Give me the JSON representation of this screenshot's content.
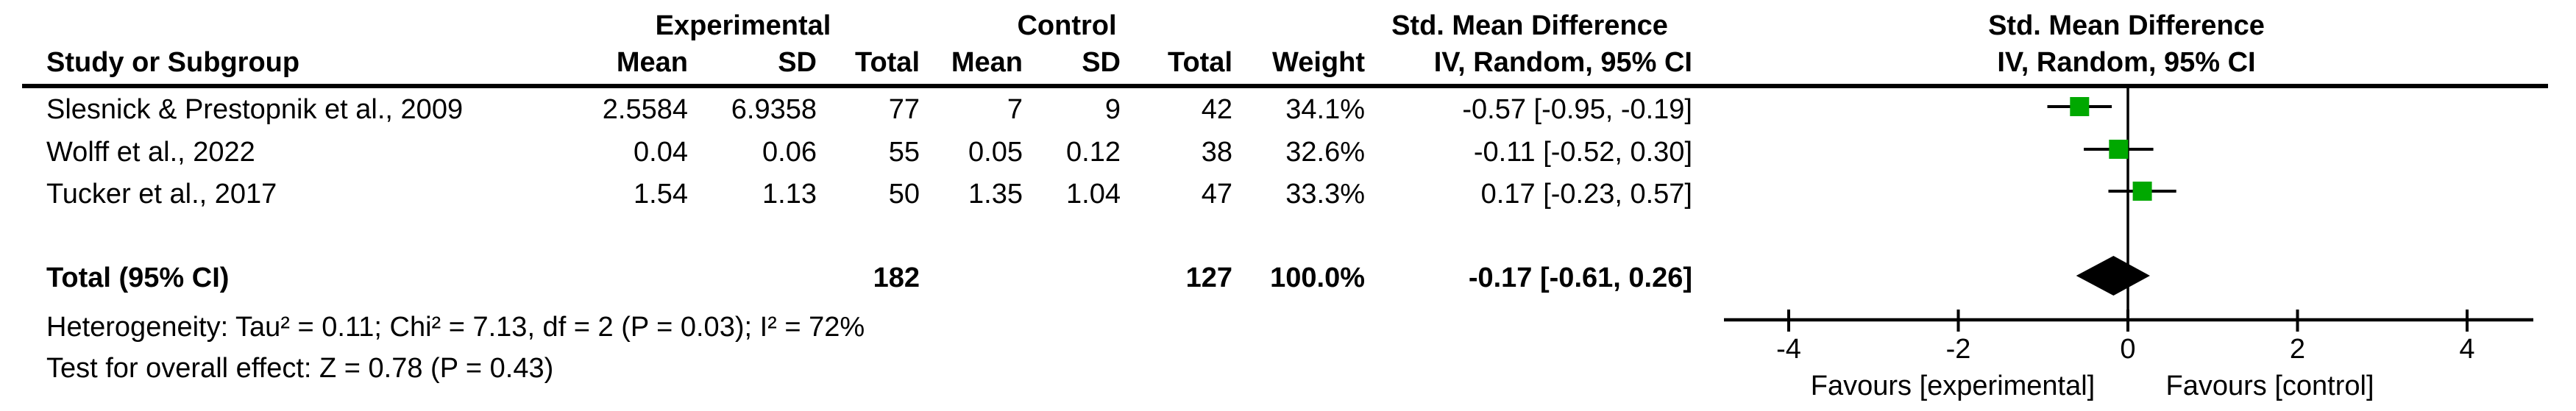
{
  "table": {
    "group_headers": {
      "experimental": "Experimental",
      "control": "Control",
      "smd_table": "Std. Mean Difference",
      "smd_plot": "Std. Mean Difference"
    },
    "col_headers": {
      "study": "Study or Subgroup",
      "mean_e": "Mean",
      "sd_e": "SD",
      "total_e": "Total",
      "mean_c": "Mean",
      "sd_c": "SD",
      "total_c": "Total",
      "weight": "Weight",
      "ci_table": "IV, Random, 95% CI",
      "ci_plot": "IV, Random, 95% CI"
    },
    "rows": [
      {
        "study": "Slesnick & Prestopnik et al., 2009",
        "mean_e": "2.5584",
        "sd_e": "6.9358",
        "total_e": "77",
        "mean_c": "7",
        "sd_c": "9",
        "total_c": "42",
        "weight": "34.1%",
        "ci": "-0.57 [-0.95, -0.19]"
      },
      {
        "study": "Wolff et al., 2022",
        "mean_e": "0.04",
        "sd_e": "0.06",
        "total_e": "55",
        "mean_c": "0.05",
        "sd_c": "0.12",
        "total_c": "38",
        "weight": "32.6%",
        "ci": "-0.11 [-0.52, 0.30]"
      },
      {
        "study": "Tucker et al., 2017",
        "mean_e": "1.54",
        "sd_e": "1.13",
        "total_e": "50",
        "mean_c": "1.35",
        "sd_c": "1.04",
        "total_c": "47",
        "weight": "33.3%",
        "ci": "0.17 [-0.23, 0.57]"
      }
    ],
    "total_row": {
      "label": "Total (95% CI)",
      "total_e": "182",
      "total_c": "127",
      "weight": "100.0%",
      "ci": "-0.17 [-0.61, 0.26]"
    },
    "footer": {
      "heterogeneity": "Heterogeneity: Tau² = 0.11; Chi² = 7.13, df = 2 (P = 0.03); I² = 72%",
      "overall_effect": "Test for overall effect: Z = 0.78 (P = 0.43)"
    }
  },
  "chart_data": {
    "type": "scatter",
    "subtype": "forest-plot",
    "title": "Std. Mean Difference, IV, Random, 95% CI",
    "axis": {
      "min": -4,
      "max": 4,
      "ticks": [
        -4,
        -2,
        0,
        2,
        4
      ],
      "zero_line": 0
    },
    "tick_labels": [
      "-4",
      "-2",
      "0",
      "2",
      "4"
    ],
    "favours_left": "Favours [experimental]",
    "favours_right": "Favours [control]",
    "studies": [
      {
        "name": "Slesnick & Prestopnik et al., 2009",
        "smd": -0.57,
        "ci_low": -0.95,
        "ci_high": -0.19,
        "weight_pct": 34.1
      },
      {
        "name": "Wolff et al., 2022",
        "smd": -0.11,
        "ci_low": -0.52,
        "ci_high": 0.3,
        "weight_pct": 32.6
      },
      {
        "name": "Tucker et al., 2017",
        "smd": 0.17,
        "ci_low": -0.23,
        "ci_high": 0.57,
        "weight_pct": 33.3
      }
    ],
    "total": {
      "smd": -0.17,
      "ci_low": -0.61,
      "ci_high": 0.26,
      "weight_pct": 100.0
    },
    "colors": {
      "marker_green": "#00a800",
      "diamond_black": "#000000",
      "line_black": "#000000",
      "text_black": "#000000"
    }
  }
}
